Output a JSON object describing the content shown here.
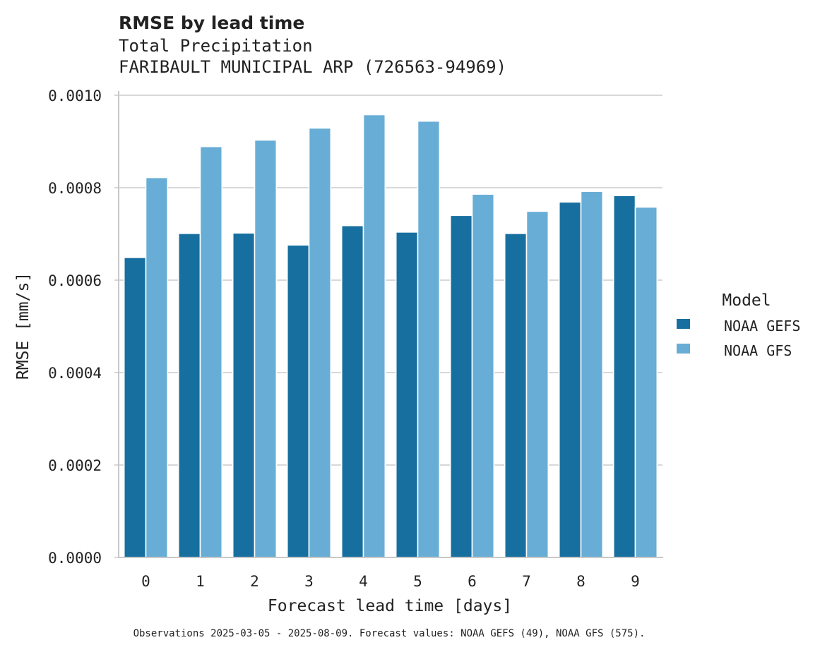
{
  "chart_data": {
    "type": "bar",
    "title": "RMSE by lead time",
    "subtitle_lines": [
      "Total Precipitation",
      "FARIBAULT MUNICIPAL ARP (726563-94969)"
    ],
    "xlabel": "Forecast lead time [days]",
    "ylabel": "RMSE [mm/s]",
    "categories": [
      "0",
      "1",
      "2",
      "3",
      "4",
      "5",
      "6",
      "7",
      "8",
      "9"
    ],
    "ylim": [
      0,
      0.001
    ],
    "yticks": [
      "0.0000",
      "0.0002",
      "0.0004",
      "0.0006",
      "0.0008",
      "0.0010"
    ],
    "grid": true,
    "legend": {
      "title": "Model",
      "placement": "right"
    },
    "series": [
      {
        "name": "NOAA GEFS",
        "color": "#176fa0",
        "values": [
          0.000649,
          0.000701,
          0.000702,
          0.000676,
          0.000718,
          0.000704,
          0.00074,
          0.000701,
          0.000769,
          0.000783
        ]
      },
      {
        "name": "NOAA GFS",
        "color": "#67add6",
        "values": [
          0.000822,
          0.000889,
          0.000903,
          0.000929,
          0.000958,
          0.000944,
          0.000786,
          0.000749,
          0.000792,
          0.000758
        ]
      }
    ],
    "footnote": "Observations 2025-03-05 - 2025-08-09. Forecast values: NOAA GEFS (49), NOAA GFS (575)."
  }
}
